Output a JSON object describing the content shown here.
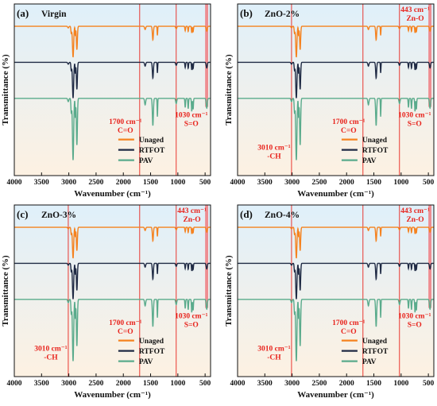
{
  "chart_data": [
    {
      "type": "line",
      "panel": "(a)",
      "title": "Virgin",
      "xlabel": "Wavenumber (cm⁻¹)",
      "ylabel": "Transmittance (%)",
      "xlim": [
        4000,
        400
      ],
      "x_ticks": [
        "4000",
        "3500",
        "3000",
        "2500",
        "2000",
        "1500",
        "1000",
        "500"
      ],
      "reference_lines": [
        1700,
        1030
      ],
      "highlight_band": [
        500,
        443
      ],
      "annotations": [
        {
          "line1": "1700 cm⁻¹",
          "line2": "C=O"
        },
        {
          "line1": "1030 cm⁻¹",
          "line2": "S=O"
        }
      ],
      "legend": [
        "Unaged",
        "RTFOT",
        "PAV"
      ],
      "series": [
        {
          "name": "Unaged"
        },
        {
          "name": "RTFOT"
        },
        {
          "name": "PAV"
        }
      ]
    },
    {
      "type": "line",
      "panel": "(b)",
      "title": "ZnO-2%",
      "xlabel": "Wavenumber (cm⁻¹)",
      "ylabel": "Transmittance (%)",
      "xlim": [
        4000,
        400
      ],
      "x_ticks": [
        "4000",
        "3500",
        "3000",
        "2500",
        "2000",
        "1500",
        "1000",
        "500"
      ],
      "reference_lines": [
        3010,
        1700,
        1030
      ],
      "highlight_band": [
        500,
        443
      ],
      "annotations": [
        {
          "line1": "3010 cm⁻¹",
          "line2": "-CH"
        },
        {
          "line1": "1700 cm⁻¹",
          "line2": "C=O"
        },
        {
          "line1": "1030 cm⁻¹",
          "line2": "S=O"
        },
        {
          "line1": "443 cm⁻¹",
          "line2": "Zn-O"
        }
      ],
      "legend": [
        "Unaged",
        "RTFOT",
        "PAV"
      ],
      "series": [
        {
          "name": "Unaged"
        },
        {
          "name": "RTFOT"
        },
        {
          "name": "PAV"
        }
      ]
    },
    {
      "type": "line",
      "panel": "(c)",
      "title": "ZnO-3%",
      "xlabel": "Wavenumber (cm⁻¹)",
      "ylabel": "Transmittance (%)",
      "xlim": [
        4000,
        400
      ],
      "x_ticks": [
        "4000",
        "3500",
        "3000",
        "2500",
        "2000",
        "1500",
        "1000",
        "500"
      ],
      "reference_lines": [
        3010,
        1700,
        1030
      ],
      "highlight_band": [
        500,
        443
      ],
      "annotations": [
        {
          "line1": "3010 cm⁻¹",
          "line2": "-CH"
        },
        {
          "line1": "1700 cm⁻¹",
          "line2": "C=O"
        },
        {
          "line1": "1030 cm⁻¹",
          "line2": "S=O"
        },
        {
          "line1": "443 cm⁻¹",
          "line2": "Zn-O"
        }
      ],
      "legend": [
        "Unaged",
        "RTFOT",
        "PAV"
      ],
      "series": [
        {
          "name": "Unaged"
        },
        {
          "name": "RTFOT"
        },
        {
          "name": "PAV"
        }
      ]
    },
    {
      "type": "line",
      "panel": "(d)",
      "title": "ZnO-4%",
      "xlabel": "Wavenumber (cm⁻¹)",
      "ylabel": "Transmittance (%)",
      "xlim": [
        4000,
        400
      ],
      "x_ticks": [
        "4000",
        "3500",
        "3000",
        "2500",
        "2000",
        "1500",
        "1000",
        "500"
      ],
      "reference_lines": [
        3010,
        1700,
        1030
      ],
      "highlight_band": [
        500,
        443
      ],
      "annotations": [
        {
          "line1": "3010 cm⁻¹",
          "line2": "-CH"
        },
        {
          "line1": "1700 cm⁻¹",
          "line2": "C=O"
        },
        {
          "line1": "1030 cm⁻¹",
          "line2": "S=O"
        },
        {
          "line1": "443 cm⁻¹",
          "line2": "Zn-O"
        }
      ],
      "legend": [
        "Unaged",
        "RTFOT",
        "PAV"
      ],
      "series": [
        {
          "name": "Unaged"
        },
        {
          "name": "RTFOT"
        },
        {
          "name": "PAV"
        }
      ]
    }
  ],
  "colors": {
    "unaged": "#f5821f",
    "rtfot": "#1f2a44",
    "pav": "#5aab8c",
    "reference_line": "#e8231c",
    "band": "#ef7b80",
    "background_top": "#dff0fa",
    "background_bottom": "#fdf1e2"
  }
}
